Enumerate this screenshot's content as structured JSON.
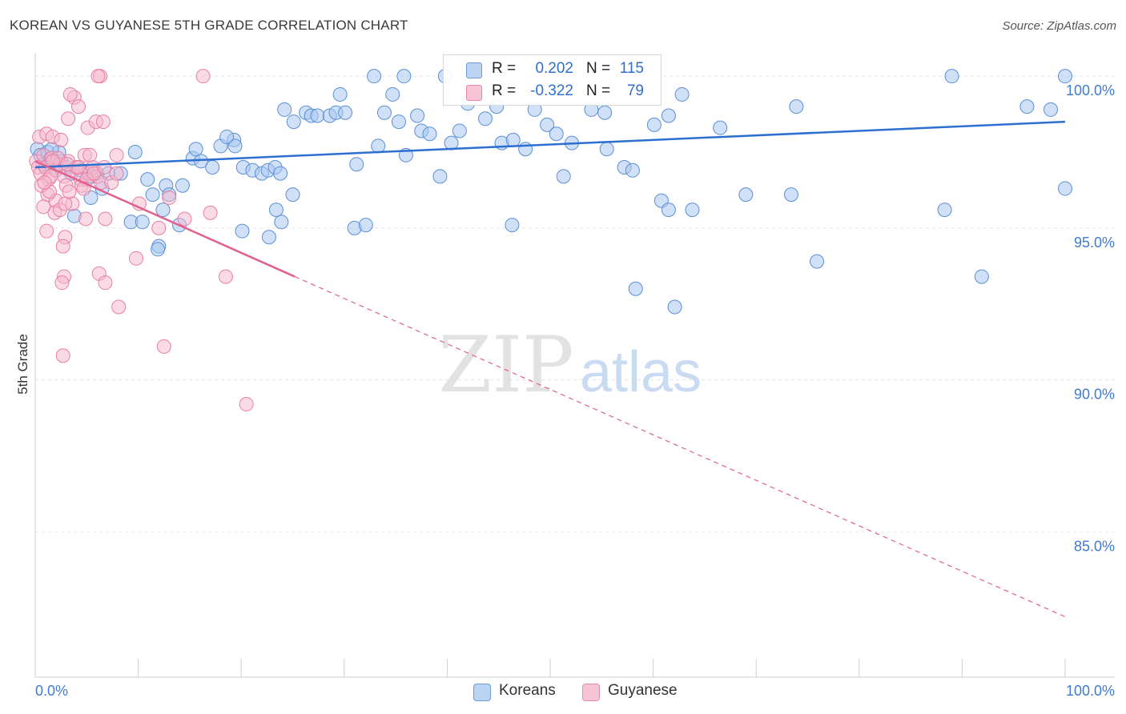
{
  "title": "KOREAN VS GUYANESE 5TH GRADE CORRELATION CHART",
  "source": "Source: ZipAtlas.com",
  "watermark": {
    "zip": "ZIP",
    "atlas": "atlas"
  },
  "legend": {
    "rows": [
      {
        "r_label": "R =",
        "r_value": "0.202",
        "n_label": "N =",
        "n_value": "115"
      },
      {
        "r_label": "R =",
        "r_value": "-0.322",
        "n_label": "N =",
        "n_value": "79"
      }
    ]
  },
  "bottom_legend": {
    "koreans": "Koreans",
    "guyanese": "Guyanese"
  },
  "colors": {
    "korean_fill": "#a9c8f0",
    "korean_stroke": "#5b8fd6",
    "korean_line": "#2c6fd0",
    "guyanese_fill": "#f6b8cb",
    "guyanese_stroke": "#e87fa2",
    "guyanese_line": "#e0608e",
    "tick_label": "#3f7bd0",
    "grid": "#e3e3e3"
  },
  "chart_data": {
    "type": "scatter",
    "title": "KOREAN VS GUYANESE 5TH GRADE CORRELATION CHART",
    "xlabel": "",
    "ylabel": "5th Grade",
    "xlim": [
      0,
      100
    ],
    "ylim": [
      80.2,
      100.9
    ],
    "x_tick_labels": [
      "0.0%",
      "100.0%"
    ],
    "y_ticks": [
      85,
      90,
      95,
      100
    ],
    "y_tick_labels": [
      "85.0%",
      "90.0%",
      "95.0%",
      "100.0%"
    ],
    "grid": true,
    "legend_position": "top-center",
    "series": [
      {
        "name": "Koreans",
        "r": 0.202,
        "n": 115,
        "trend": {
          "x": [
            0,
            100
          ],
          "y": [
            97.0,
            98.5
          ]
        },
        "points": [
          [
            0.2,
            97.6
          ],
          [
            0.5,
            97.4
          ],
          [
            0.8,
            97.1
          ],
          [
            1.2,
            97.5
          ],
          [
            1.5,
            97.3
          ],
          [
            2.0,
            96.9
          ],
          [
            2.5,
            97.2
          ],
          [
            3.0,
            97.0
          ],
          [
            3.5,
            96.8
          ],
          [
            4.0,
            97.0
          ],
          [
            4.5,
            96.9
          ],
          [
            5.0,
            96.6
          ],
          [
            5.5,
            96.7
          ],
          [
            6.0,
            96.8
          ],
          [
            6.5,
            96.3
          ],
          [
            2.3,
            97.5
          ],
          [
            1.6,
            97.6
          ],
          [
            3.8,
            95.4
          ],
          [
            5.4,
            96.0
          ],
          [
            7.1,
            96.8
          ],
          [
            8.3,
            96.8
          ],
          [
            9.7,
            97.5
          ],
          [
            10.9,
            96.6
          ],
          [
            11.4,
            96.1
          ],
          [
            12.7,
            96.4
          ],
          [
            13.0,
            96.1
          ],
          [
            12.4,
            95.6
          ],
          [
            14.0,
            95.1
          ],
          [
            14.3,
            96.4
          ],
          [
            9.3,
            95.2
          ],
          [
            10.4,
            95.2
          ],
          [
            12.0,
            94.4
          ],
          [
            11.9,
            94.3
          ],
          [
            15.3,
            97.3
          ],
          [
            16.1,
            97.2
          ],
          [
            17.2,
            97.0
          ],
          [
            18.0,
            97.7
          ],
          [
            19.3,
            97.9
          ],
          [
            19.4,
            97.7
          ],
          [
            15.6,
            97.6
          ],
          [
            18.6,
            98.0
          ],
          [
            20.2,
            97.0
          ],
          [
            21.1,
            96.9
          ],
          [
            22.0,
            96.8
          ],
          [
            22.6,
            96.9
          ],
          [
            23.3,
            97.0
          ],
          [
            23.8,
            96.8
          ],
          [
            24.2,
            98.9
          ],
          [
            25.1,
            98.5
          ],
          [
            26.3,
            98.8
          ],
          [
            26.8,
            98.7
          ],
          [
            27.4,
            98.7
          ],
          [
            28.6,
            98.7
          ],
          [
            29.2,
            98.8
          ],
          [
            30.1,
            98.8
          ],
          [
            29.6,
            99.4
          ],
          [
            31.2,
            97.1
          ],
          [
            32.9,
            100.0
          ],
          [
            33.3,
            97.7
          ],
          [
            33.9,
            98.8
          ],
          [
            34.7,
            99.4
          ],
          [
            35.3,
            98.5
          ],
          [
            35.8,
            100.0
          ],
          [
            36.0,
            97.4
          ],
          [
            37.1,
            98.7
          ],
          [
            37.5,
            98.2
          ],
          [
            38.3,
            98.1
          ],
          [
            39.3,
            96.7
          ],
          [
            39.8,
            100.0
          ],
          [
            40.4,
            97.8
          ],
          [
            41.2,
            98.2
          ],
          [
            42.0,
            99.1
          ],
          [
            43.7,
            98.6
          ],
          [
            44.8,
            99.0
          ],
          [
            45.3,
            97.8
          ],
          [
            46.4,
            97.9
          ],
          [
            47.6,
            97.6
          ],
          [
            48.5,
            98.9
          ],
          [
            49.7,
            98.4
          ],
          [
            50.6,
            98.1
          ],
          [
            51.3,
            96.7
          ],
          [
            52.1,
            97.8
          ],
          [
            54.0,
            98.9
          ],
          [
            55.3,
            98.8
          ],
          [
            55.5,
            97.6
          ],
          [
            57.2,
            97.0
          ],
          [
            58.0,
            96.9
          ],
          [
            60.1,
            98.4
          ],
          [
            61.5,
            98.7
          ],
          [
            62.8,
            99.4
          ],
          [
            60.8,
            95.9
          ],
          [
            61.5,
            95.6
          ],
          [
            63.8,
            95.6
          ],
          [
            66.5,
            98.3
          ],
          [
            69.0,
            96.1
          ],
          [
            23.9,
            95.2
          ],
          [
            20.1,
            94.9
          ],
          [
            22.7,
            94.7
          ],
          [
            23.4,
            95.6
          ],
          [
            25.0,
            96.1
          ],
          [
            31.0,
            95.0
          ],
          [
            32.1,
            95.1
          ],
          [
            46.3,
            95.1
          ],
          [
            58.3,
            93.0
          ],
          [
            62.1,
            92.4
          ],
          [
            73.4,
            96.1
          ],
          [
            73.9,
            99.0
          ],
          [
            89.0,
            100.0
          ],
          [
            91.9,
            93.4
          ],
          [
            100.0,
            100.0
          ],
          [
            75.9,
            93.9
          ],
          [
            88.3,
            95.6
          ],
          [
            96.3,
            99.0
          ],
          [
            98.6,
            98.9
          ],
          [
            100.0,
            96.3
          ]
        ]
      },
      {
        "name": "Guyanese",
        "r": -0.322,
        "n": 79,
        "trend": {
          "x": [
            0,
            25.2
          ],
          "y": [
            97.2,
            93.4
          ],
          "dashed_to": [
            100,
            82.2
          ]
        },
        "points": [
          [
            0.1,
            97.2
          ],
          [
            0.3,
            97.0
          ],
          [
            0.5,
            96.8
          ],
          [
            0.8,
            97.4
          ],
          [
            1.0,
            97.0
          ],
          [
            1.3,
            96.6
          ],
          [
            1.6,
            97.3
          ],
          [
            2.0,
            96.9
          ],
          [
            2.4,
            97.1
          ],
          [
            2.8,
            96.7
          ],
          [
            3.2,
            97.2
          ],
          [
            3.6,
            96.9
          ],
          [
            4.0,
            97.0
          ],
          [
            4.4,
            96.6
          ],
          [
            4.8,
            97.4
          ],
          [
            5.2,
            96.8
          ],
          [
            5.6,
            97.0
          ],
          [
            6.0,
            96.7
          ],
          [
            6.4,
            96.5
          ],
          [
            0.4,
            98.0
          ],
          [
            1.1,
            98.1
          ],
          [
            1.7,
            98.0
          ],
          [
            2.5,
            97.9
          ],
          [
            3.2,
            98.6
          ],
          [
            3.8,
            99.3
          ],
          [
            4.2,
            99.0
          ],
          [
            5.1,
            98.3
          ],
          [
            5.9,
            98.5
          ],
          [
            6.6,
            98.5
          ],
          [
            3.4,
            99.4
          ],
          [
            6.3,
            100.0
          ],
          [
            6.1,
            100.0
          ],
          [
            16.3,
            100.0
          ],
          [
            1.2,
            96.1
          ],
          [
            2.0,
            95.9
          ],
          [
            3.6,
            95.8
          ],
          [
            0.8,
            95.7
          ],
          [
            1.9,
            95.5
          ],
          [
            2.4,
            95.6
          ],
          [
            4.9,
            95.3
          ],
          [
            6.8,
            95.3
          ],
          [
            7.9,
            97.4
          ],
          [
            1.1,
            94.9
          ],
          [
            2.9,
            94.7
          ],
          [
            2.7,
            94.4
          ],
          [
            6.2,
            93.5
          ],
          [
            2.8,
            93.4
          ],
          [
            2.6,
            93.2
          ],
          [
            6.8,
            93.2
          ],
          [
            8.1,
            92.4
          ],
          [
            9.8,
            94.0
          ],
          [
            12.5,
            91.1
          ],
          [
            10.1,
            95.8
          ],
          [
            12.0,
            95.0
          ],
          [
            13.0,
            96.0
          ],
          [
            14.5,
            95.3
          ],
          [
            17.0,
            95.5
          ],
          [
            2.7,
            90.8
          ],
          [
            20.5,
            89.2
          ],
          [
            18.5,
            93.4
          ],
          [
            1.5,
            96.7
          ],
          [
            2.2,
            97.3
          ],
          [
            3.0,
            96.4
          ],
          [
            4.5,
            96.4
          ],
          [
            5.0,
            96.6
          ],
          [
            5.3,
            97.4
          ],
          [
            5.7,
            96.8
          ],
          [
            6.7,
            97.0
          ],
          [
            7.4,
            96.5
          ],
          [
            7.9,
            96.8
          ],
          [
            0.6,
            96.4
          ],
          [
            2.9,
            95.8
          ],
          [
            1.4,
            96.2
          ],
          [
            3.3,
            96.2
          ],
          [
            3.1,
            97.1
          ],
          [
            4.2,
            97.0
          ],
          [
            4.7,
            96.3
          ],
          [
            0.9,
            96.5
          ],
          [
            1.7,
            97.2
          ]
        ]
      }
    ]
  }
}
